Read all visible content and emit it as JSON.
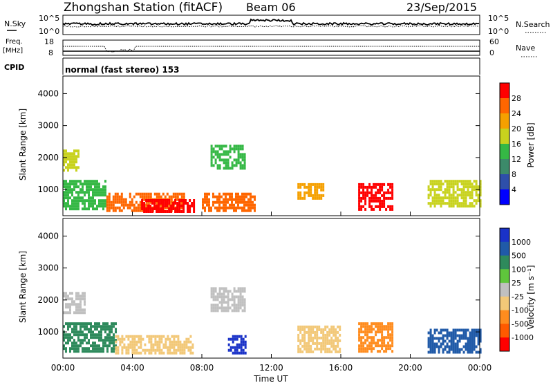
{
  "header": {
    "title": "Zhongshan Station (fitACF)",
    "beam": "Beam 06",
    "date": "23/Sep/2015"
  },
  "nsky_panel": {
    "left_label": "N.Sky",
    "right_label": "N.Search",
    "left_ticks": [
      "10^5",
      "10^0"
    ],
    "right_ticks": [
      "10^5",
      "10^0"
    ]
  },
  "freq_panel": {
    "left_label_1": "Freq.",
    "left_label_2": "[MHz]",
    "right_label": "Nave",
    "left_ticks": [
      "18",
      "8"
    ],
    "right_ticks": [
      "60",
      "0"
    ]
  },
  "cpid": {
    "label": "CPID",
    "text": "normal (fast stereo) 153"
  },
  "colors": {
    "power_scale": [
      "#0000ff",
      "#2e4faa",
      "#3c8a6a",
      "#35b845",
      "#c8d21e",
      "#f5a000",
      "#ff6600",
      "#ff0000"
    ],
    "velocity_scale": [
      "#ff0000",
      "#ff5a00",
      "#ff8c1e",
      "#f2c878",
      "#c0c0c0",
      "#5fc63c",
      "#2e8a5c",
      "#205aa8",
      "#1a32c8"
    ]
  },
  "chart_data": [
    {
      "type": "heatmap",
      "name": "power",
      "xlabel": "",
      "ylabel": "Slant Range [km]",
      "xlim_hours": [
        0,
        24
      ],
      "ylim": [
        180,
        4550
      ],
      "yticks": [
        1000,
        2000,
        3000,
        4000
      ],
      "colorbar": {
        "label": "Power [dB]",
        "range": [
          0,
          32
        ],
        "ticks": [
          4,
          8,
          12,
          16,
          20,
          24,
          28
        ]
      },
      "dominant_patches": [
        {
          "t": [
            0.0,
            0.9
          ],
          "r": [
            1600,
            2250
          ],
          "level": 16
        },
        {
          "t": [
            0.0,
            2.5
          ],
          "r": [
            400,
            1300
          ],
          "level": 12
        },
        {
          "t": [
            2.5,
            7.0
          ],
          "r": [
            300,
            900
          ],
          "level": 24
        },
        {
          "t": [
            4.5,
            7.5
          ],
          "r": [
            300,
            700
          ],
          "level": 28
        },
        {
          "t": [
            8.5,
            10.5
          ],
          "r": [
            1700,
            2400
          ],
          "level": 12
        },
        {
          "t": [
            8.0,
            11.0
          ],
          "r": [
            300,
            900
          ],
          "level": 24
        },
        {
          "t": [
            13.5,
            15.0
          ],
          "r": [
            700,
            1200
          ],
          "level": 20
        },
        {
          "t": [
            17.0,
            19.0
          ],
          "r": [
            400,
            1200
          ],
          "level": 28
        },
        {
          "t": [
            21.0,
            24.0
          ],
          "r": [
            500,
            1300
          ],
          "level": 16
        }
      ]
    },
    {
      "type": "heatmap",
      "name": "velocity",
      "xlabel": "Time UT",
      "ylabel": "Slant Range [km]",
      "xlim_hours": [
        0,
        24
      ],
      "ylim": [
        180,
        4550
      ],
      "yticks": [
        1000,
        2000,
        3000,
        4000
      ],
      "xticks": [
        "00:00",
        "04:00",
        "08:00",
        "12:00",
        "16:00",
        "20:00",
        "00:00"
      ],
      "colorbar": {
        "label": "Velocity [m s⁻¹]",
        "ticks": [
          "1000",
          "500",
          "100",
          "25",
          "-25",
          "-100",
          "-500",
          "-1000"
        ]
      },
      "dominant_patches": [
        {
          "t": [
            0.0,
            1.2
          ],
          "r": [
            1600,
            2250
          ],
          "level": 0
        },
        {
          "t": [
            0.0,
            3.0
          ],
          "r": [
            400,
            1300
          ],
          "level": 100
        },
        {
          "t": [
            3.0,
            7.5
          ],
          "r": [
            300,
            900
          ],
          "level": -100
        },
        {
          "t": [
            8.5,
            10.5
          ],
          "r": [
            1700,
            2400
          ],
          "level": 0
        },
        {
          "t": [
            9.5,
            10.5
          ],
          "r": [
            300,
            900
          ],
          "level": 1000
        },
        {
          "t": [
            13.5,
            16.0
          ],
          "r": [
            400,
            1200
          ],
          "level": -100
        },
        {
          "t": [
            17.0,
            19.0
          ],
          "r": [
            400,
            1300
          ],
          "level": -500
        },
        {
          "t": [
            21.0,
            24.0
          ],
          "r": [
            400,
            1100
          ],
          "level": 500
        }
      ]
    }
  ]
}
